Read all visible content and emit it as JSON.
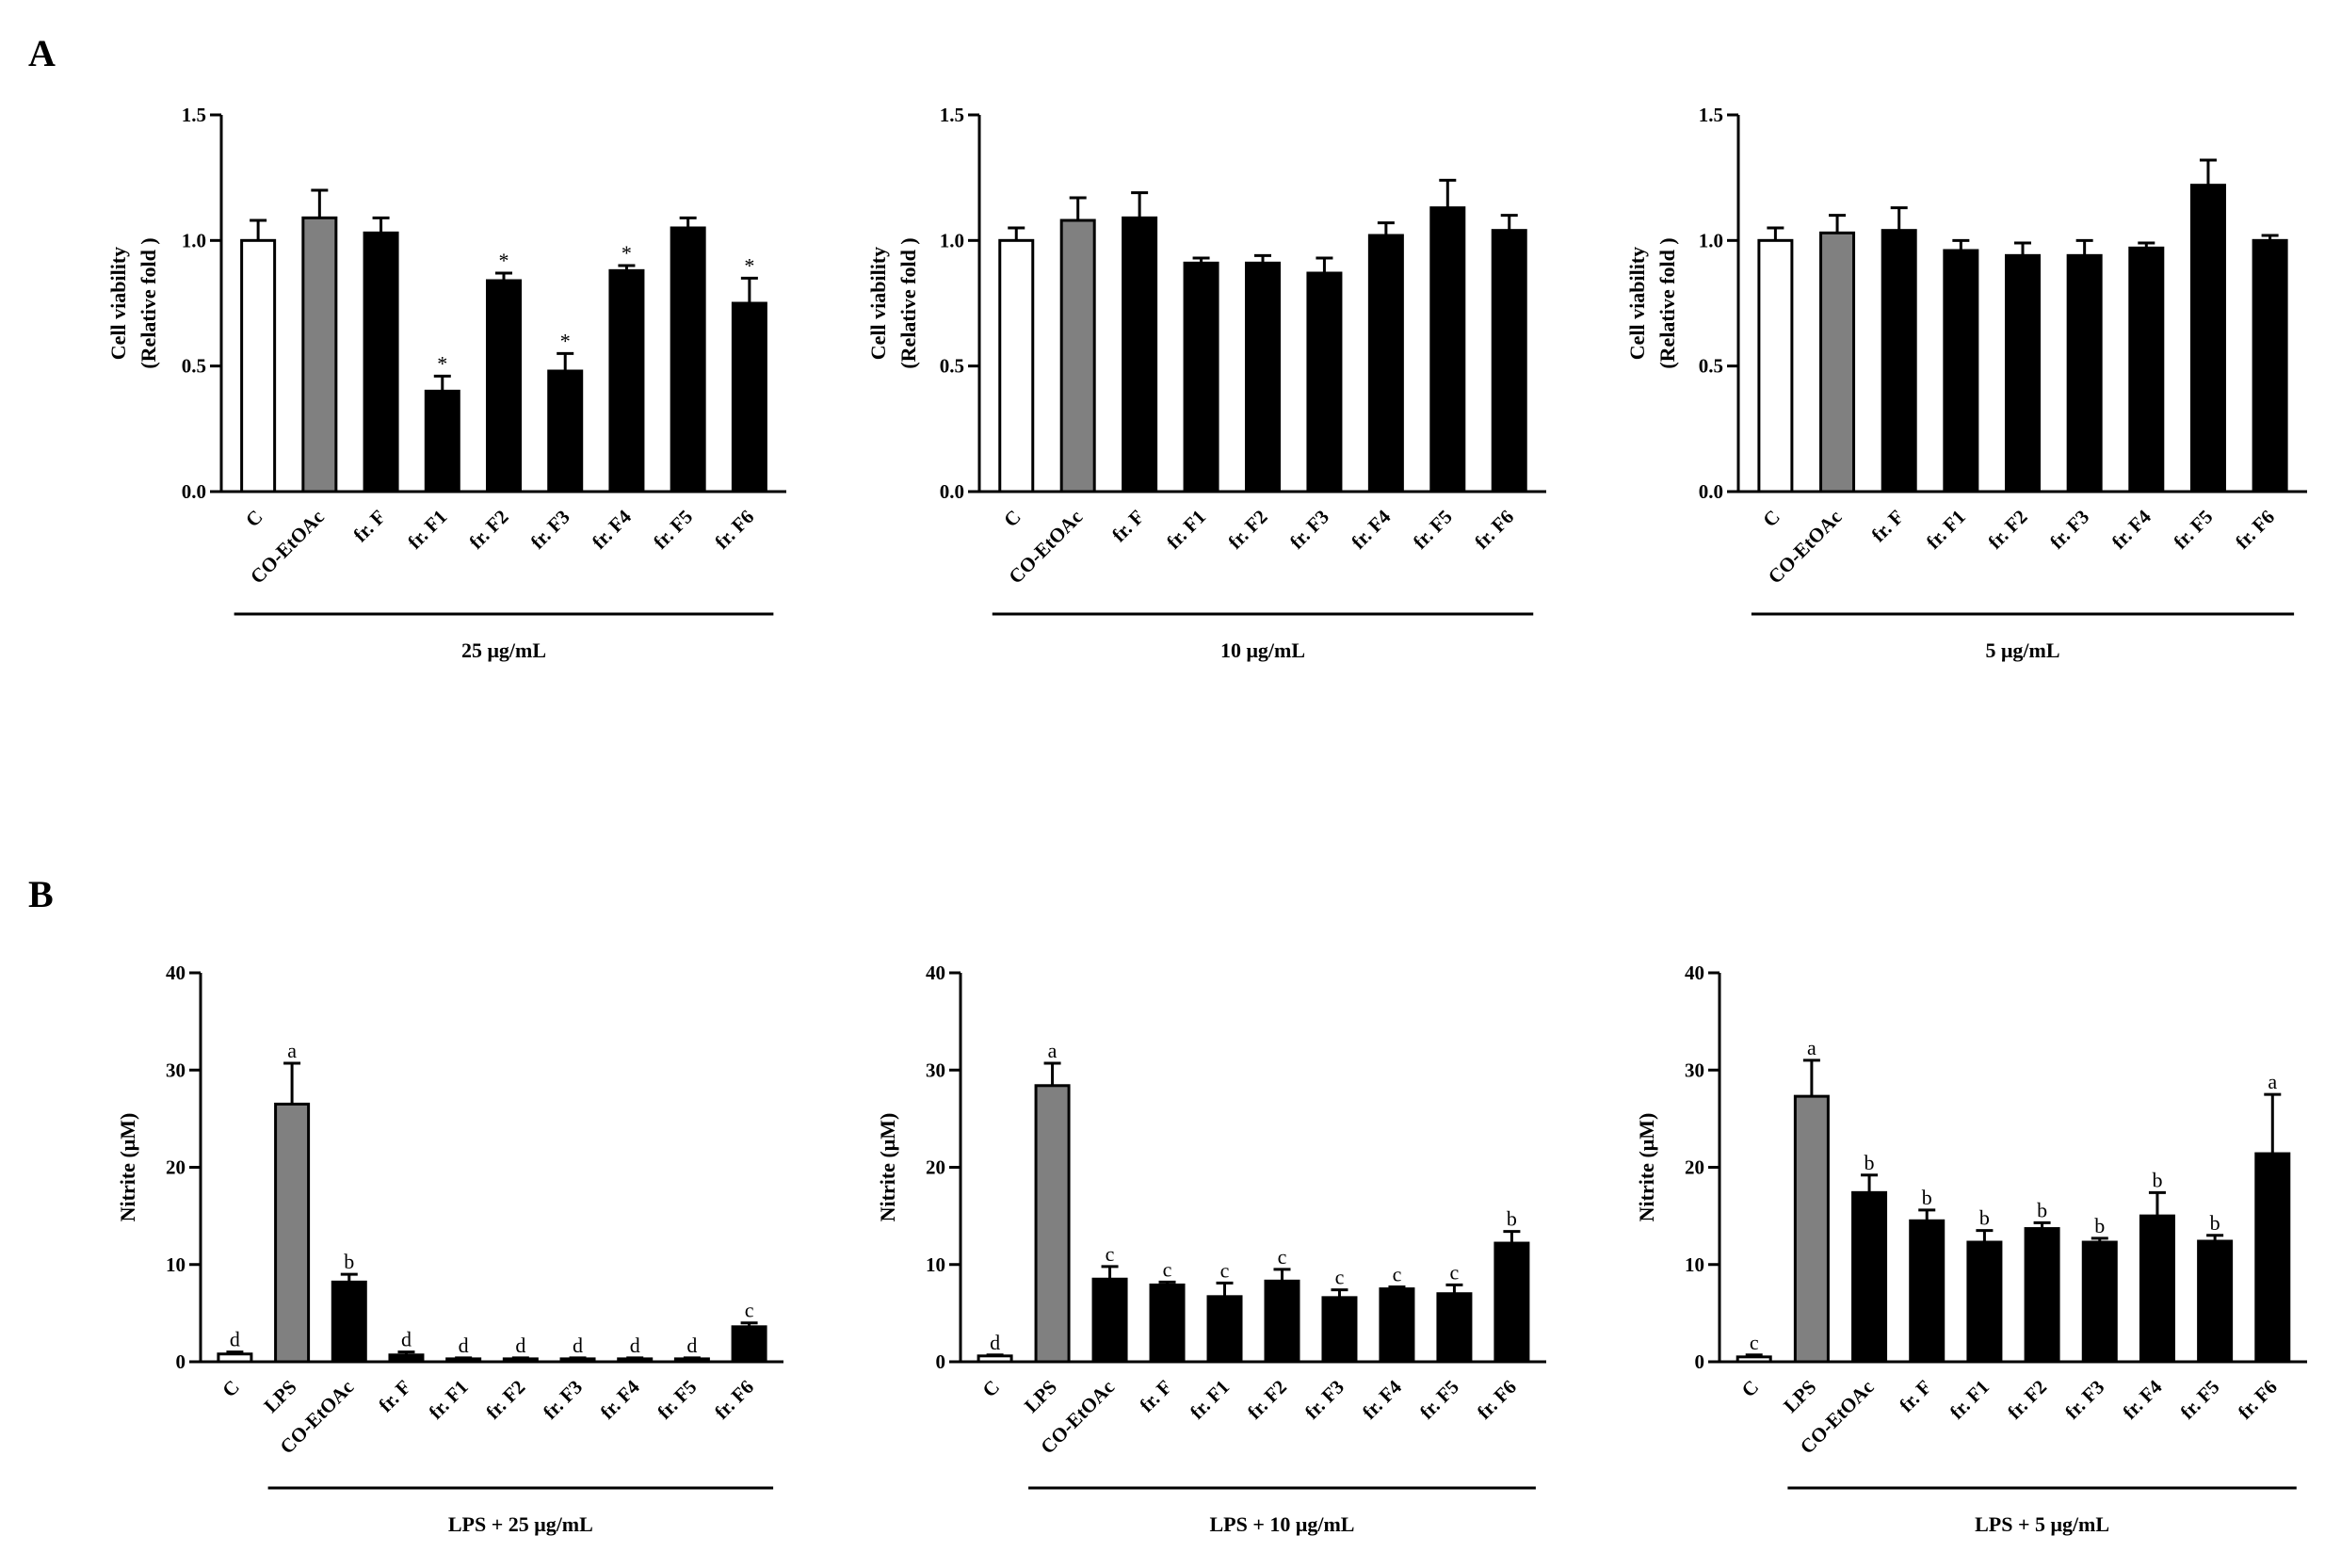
{
  "panel_labels": [
    "A",
    "B"
  ],
  "colors": {
    "control": "#ffffff",
    "reference": "#808080",
    "sample": "#000000",
    "ink": "#000000"
  },
  "chart_data": [
    {
      "type": "bar",
      "panel": "A",
      "categories": [
        "C",
        "CO-EtOAc",
        "fr. F",
        "fr. F1",
        "fr. F2",
        "fr. F3",
        "fr. F4",
        "fr. F5",
        "fr. F6"
      ],
      "values": [
        1.0,
        1.09,
        1.03,
        0.4,
        0.84,
        0.48,
        0.88,
        1.05,
        0.75
      ],
      "errors": [
        0.08,
        0.11,
        0.06,
        0.06,
        0.03,
        0.07,
        0.02,
        0.04,
        0.1
      ],
      "annotations": [
        "",
        "",
        "",
        "*",
        "*",
        "*",
        "*",
        "",
        "*"
      ],
      "fills": [
        "control",
        "reference",
        "sample",
        "sample",
        "sample",
        "sample",
        "sample",
        "sample",
        "sample"
      ],
      "ylabel_line1": "Cell viability",
      "ylabel_line2": "(Relative fold )",
      "ylim": [
        0,
        1.5
      ],
      "yticks": [
        "0.0",
        "0.5",
        "1.0",
        "1.5"
      ],
      "group_label": "25 μg/mL",
      "group_start": 0
    },
    {
      "type": "bar",
      "panel": "A",
      "categories": [
        "C",
        "CO-EtOAc",
        "fr. F",
        "fr. F1",
        "fr. F2",
        "fr. F3",
        "fr. F4",
        "fr. F5",
        "fr. F6"
      ],
      "values": [
        1.0,
        1.08,
        1.09,
        0.91,
        0.91,
        0.87,
        1.02,
        1.13,
        1.04
      ],
      "errors": [
        0.05,
        0.09,
        0.1,
        0.02,
        0.03,
        0.06,
        0.05,
        0.11,
        0.06
      ],
      "annotations": [
        "",
        "",
        "",
        "",
        "",
        "",
        "",
        "",
        ""
      ],
      "fills": [
        "control",
        "reference",
        "sample",
        "sample",
        "sample",
        "sample",
        "sample",
        "sample",
        "sample"
      ],
      "ylabel_line1": "Cell viability",
      "ylabel_line2": "(Relative fold )",
      "ylim": [
        0,
        1.5
      ],
      "yticks": [
        "0.0",
        "0.5",
        "1.0",
        "1.5"
      ],
      "group_label": "10 μg/mL",
      "group_start": 0
    },
    {
      "type": "bar",
      "panel": "A",
      "categories": [
        "C",
        "CO-EtOAc",
        "fr. F",
        "fr. F1",
        "fr. F2",
        "fr. F3",
        "fr. F4",
        "fr. F5",
        "fr. F6"
      ],
      "values": [
        1.0,
        1.03,
        1.04,
        0.96,
        0.94,
        0.94,
        0.97,
        1.22,
        1.0
      ],
      "errors": [
        0.05,
        0.07,
        0.09,
        0.04,
        0.05,
        0.06,
        0.02,
        0.1,
        0.02
      ],
      "annotations": [
        "",
        "",
        "",
        "",
        "",
        "",
        "",
        "",
        ""
      ],
      "fills": [
        "control",
        "reference",
        "sample",
        "sample",
        "sample",
        "sample",
        "sample",
        "sample",
        "sample"
      ],
      "ylabel_line1": "Cell viability",
      "ylabel_line2": "(Relative fold )",
      "ylim": [
        0,
        1.5
      ],
      "yticks": [
        "0.0",
        "0.5",
        "1.0",
        "1.5"
      ],
      "group_label": "5 μg/mL",
      "group_start": 0
    },
    {
      "type": "bar",
      "panel": "B",
      "categories": [
        "C",
        "LPS",
        "CO-EtOAc",
        "fr. F",
        "fr. F1",
        "fr. F2",
        "fr. F3",
        "fr. F4",
        "fr. F5",
        "fr. F6"
      ],
      "values": [
        0.8,
        26.5,
        8.2,
        0.7,
        0.3,
        0.3,
        0.3,
        0.3,
        0.3,
        3.6
      ],
      "errors": [
        0.2,
        4.2,
        0.8,
        0.3,
        0.1,
        0.1,
        0.1,
        0.1,
        0.1,
        0.4
      ],
      "annotations": [
        "d",
        "a",
        "b",
        "d",
        "d",
        "d",
        "d",
        "d",
        "d",
        "c"
      ],
      "fills": [
        "control",
        "reference",
        "sample",
        "sample",
        "sample",
        "sample",
        "sample",
        "sample",
        "sample",
        "sample"
      ],
      "ylabel_line1": "Nitrite (μM)",
      "ylabel_line2": "",
      "ylim": [
        0,
        40
      ],
      "yticks": [
        "0",
        "10",
        "20",
        "30",
        "40"
      ],
      "group_label": "LPS + 25 μg/mL",
      "group_start": 1
    },
    {
      "type": "bar",
      "panel": "B",
      "categories": [
        "C",
        "LPS",
        "CO-EtOAc",
        "fr. F",
        "fr. F1",
        "fr. F2",
        "fr. F3",
        "fr. F4",
        "fr. F5",
        "fr. F6"
      ],
      "values": [
        0.6,
        28.4,
        8.5,
        7.9,
        6.7,
        8.3,
        6.6,
        7.5,
        7.0,
        12.2
      ],
      "errors": [
        0.1,
        2.3,
        1.3,
        0.3,
        1.4,
        1.2,
        0.8,
        0.2,
        0.9,
        1.2
      ],
      "annotations": [
        "d",
        "a",
        "c",
        "c",
        "c",
        "c",
        "c",
        "c",
        "c",
        "b"
      ],
      "fills": [
        "control",
        "reference",
        "sample",
        "sample",
        "sample",
        "sample",
        "sample",
        "sample",
        "sample",
        "sample"
      ],
      "ylabel_line1": "Nitrite (μM)",
      "ylabel_line2": "",
      "ylim": [
        0,
        40
      ],
      "yticks": [
        "0",
        "10",
        "20",
        "30",
        "40"
      ],
      "group_label": "LPS + 10 μg/mL",
      "group_start": 1
    },
    {
      "type": "bar",
      "panel": "B",
      "categories": [
        "C",
        "LPS",
        "CO-EtOAc",
        "fr. F",
        "fr. F1",
        "fr. F2",
        "fr. F3",
        "fr. F4",
        "fr. F5",
        "fr. F6"
      ],
      "values": [
        0.5,
        27.3,
        17.4,
        14.5,
        12.3,
        13.7,
        12.3,
        15.0,
        12.4,
        21.4
      ],
      "errors": [
        0.2,
        3.7,
        1.8,
        1.1,
        1.2,
        0.6,
        0.4,
        2.4,
        0.6,
        6.1
      ],
      "annotations": [
        "c",
        "a",
        "b",
        "b",
        "b",
        "b",
        "b",
        "b",
        "b",
        "a"
      ],
      "fills": [
        "control",
        "reference",
        "sample",
        "sample",
        "sample",
        "sample",
        "sample",
        "sample",
        "sample",
        "sample"
      ],
      "ylabel_line1": "Nitrite (μM)",
      "ylabel_line2": "",
      "ylim": [
        0,
        40
      ],
      "yticks": [
        "0",
        "10",
        "20",
        "30",
        "40"
      ],
      "group_label": "LPS + 5 μg/mL",
      "group_start": 1
    }
  ]
}
